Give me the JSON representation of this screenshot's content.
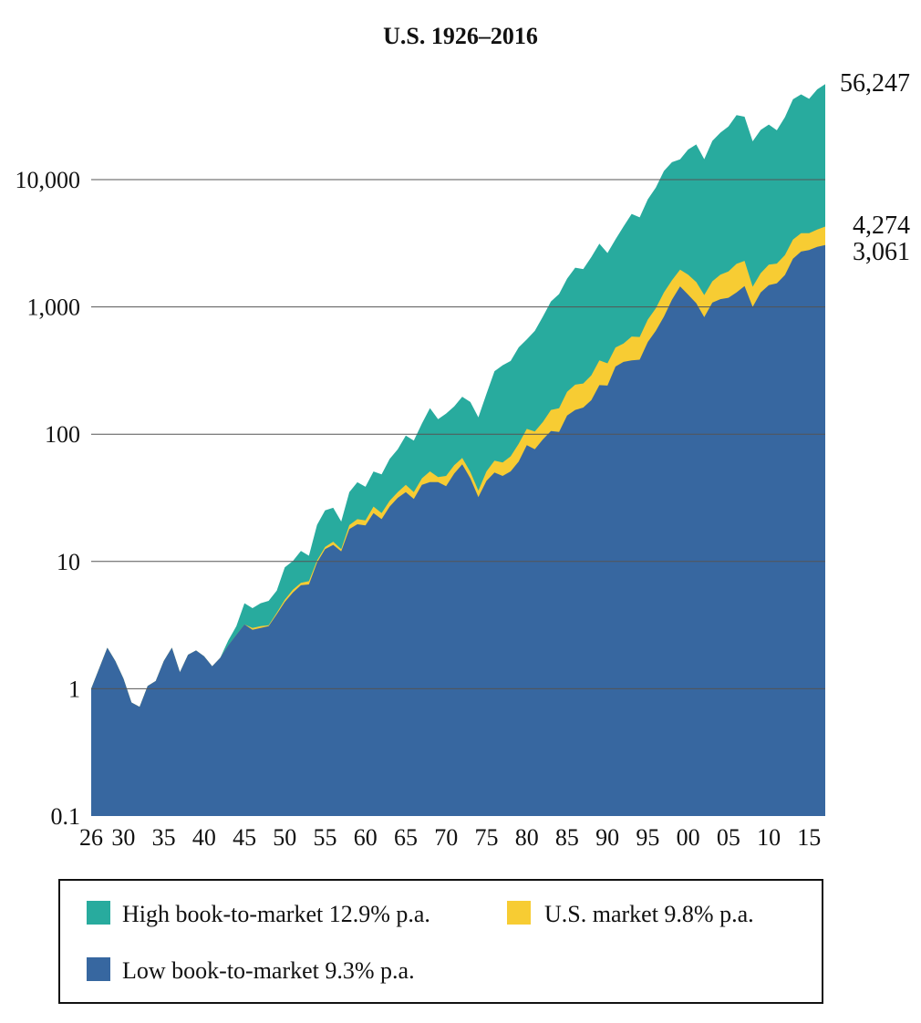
{
  "chart_data": {
    "type": "area",
    "title": "U.S. 1926–2016",
    "xlabel": "",
    "ylabel": "",
    "y_scale": "log",
    "ylim": [
      0.1,
      60000
    ],
    "y_ticks": [
      {
        "value": 0.1,
        "label": "0.1"
      },
      {
        "value": 1,
        "label": "1"
      },
      {
        "value": 10,
        "label": "10"
      },
      {
        "value": 100,
        "label": "100"
      },
      {
        "value": 1000,
        "label": "1,000"
      },
      {
        "value": 10000,
        "label": "10,000"
      }
    ],
    "gridlines": [
      1,
      10,
      100,
      1000,
      10000
    ],
    "x_ticks": [
      {
        "value": 1926,
        "label": "26"
      },
      {
        "value": 1930,
        "label": "30"
      },
      {
        "value": 1935,
        "label": "35"
      },
      {
        "value": 1940,
        "label": "40"
      },
      {
        "value": 1945,
        "label": "45"
      },
      {
        "value": 1950,
        "label": "50"
      },
      {
        "value": 1955,
        "label": "55"
      },
      {
        "value": 1960,
        "label": "60"
      },
      {
        "value": 1965,
        "label": "65"
      },
      {
        "value": 1970,
        "label": "70"
      },
      {
        "value": 1975,
        "label": "75"
      },
      {
        "value": 1980,
        "label": "80"
      },
      {
        "value": 1985,
        "label": "85"
      },
      {
        "value": 1990,
        "label": "90"
      },
      {
        "value": 1995,
        "label": "95"
      },
      {
        "value": 2000,
        "label": "00"
      },
      {
        "value": 2005,
        "label": "05"
      },
      {
        "value": 2010,
        "label": "10"
      },
      {
        "value": 2015,
        "label": "15"
      }
    ],
    "x_range": [
      1926,
      2017
    ],
    "legend_position": "bottom",
    "series": [
      {
        "name": "High book-to-market 12.9% p.a.",
        "color": "#28ab9e",
        "end_label": "56,247",
        "points": [
          [
            1926,
            1
          ],
          [
            1928,
            2.1
          ],
          [
            1929,
            1.65
          ],
          [
            1930,
            1.2
          ],
          [
            1931,
            0.78
          ],
          [
            1932,
            0.72
          ],
          [
            1933,
            1.05
          ],
          [
            1934,
            1.15
          ],
          [
            1935,
            1.65
          ],
          [
            1936,
            2.1
          ],
          [
            1937,
            1.35
          ],
          [
            1938,
            1.85
          ],
          [
            1939,
            2.0
          ],
          [
            1940,
            1.8
          ],
          [
            1941,
            1.5
          ],
          [
            1942,
            1.75
          ],
          [
            1943,
            2.4
          ],
          [
            1944,
            3.1
          ],
          [
            1945,
            4.7
          ],
          [
            1946,
            4.3
          ],
          [
            1947,
            4.7
          ],
          [
            1948,
            4.9
          ],
          [
            1949,
            5.9
          ],
          [
            1950,
            9.0
          ],
          [
            1951,
            10.1
          ],
          [
            1952,
            12.1
          ],
          [
            1953,
            11.1
          ],
          [
            1954,
            19.4
          ],
          [
            1955,
            25.2
          ],
          [
            1956,
            26.4
          ],
          [
            1957,
            20.6
          ],
          [
            1958,
            35.1
          ],
          [
            1959,
            41.9
          ],
          [
            1960,
            38.6
          ],
          [
            1961,
            50.9
          ],
          [
            1962,
            48.3
          ],
          [
            1963,
            63.9
          ],
          [
            1964,
            76.0
          ],
          [
            1965,
            97.6
          ],
          [
            1966,
            89.0
          ],
          [
            1967,
            121.2
          ],
          [
            1968,
            160.2
          ],
          [
            1969,
            131.1
          ],
          [
            1970,
            145.2
          ],
          [
            1971,
            165.5
          ],
          [
            1972,
            196.9
          ],
          [
            1973,
            179.1
          ],
          [
            1974,
            135.5
          ],
          [
            1975,
            207.6
          ],
          [
            1976,
            312.6
          ],
          [
            1977,
            347.8
          ],
          [
            1978,
            376.3
          ],
          [
            1979,
            481.0
          ],
          [
            1980,
            555.1
          ],
          [
            1981,
            648.2
          ],
          [
            1982,
            841.0
          ],
          [
            1983,
            1103.9
          ],
          [
            1984,
            1260.8
          ],
          [
            1985,
            1668.6
          ],
          [
            1986,
            2033.8
          ],
          [
            1987,
            1981.3
          ],
          [
            1988,
            2464.4
          ],
          [
            1989,
            3138.7
          ],
          [
            1990,
            2651.6
          ],
          [
            1991,
            3397.4
          ],
          [
            1992,
            4281.0
          ],
          [
            1993,
            5378.7
          ],
          [
            1994,
            5051.9
          ],
          [
            1995,
            7005.2
          ],
          [
            1996,
            8651.3
          ],
          [
            1997,
            11690
          ],
          [
            1998,
            13710
          ],
          [
            1999,
            14420
          ],
          [
            2000,
            17240
          ],
          [
            2001,
            18900
          ],
          [
            2002,
            14470
          ],
          [
            2003,
            20150
          ],
          [
            2004,
            23390
          ],
          [
            2005,
            26180
          ],
          [
            2006,
            32090
          ],
          [
            2007,
            31230
          ],
          [
            2008,
            20000
          ],
          [
            2009,
            24580
          ],
          [
            2010,
            27100
          ],
          [
            2011,
            24410
          ],
          [
            2012,
            30960
          ],
          [
            2013,
            42730
          ],
          [
            2014,
            46780
          ],
          [
            2015,
            43150
          ],
          [
            2016,
            51200
          ],
          [
            2017,
            56247
          ]
        ]
      },
      {
        "name": "U.S. market 9.8% p.a.",
        "color": "#f7cc33",
        "end_label": "4,274",
        "points": [
          [
            1926,
            1
          ],
          [
            1928,
            2.1
          ],
          [
            1929,
            1.65
          ],
          [
            1930,
            1.2
          ],
          [
            1931,
            0.78
          ],
          [
            1932,
            0.72
          ],
          [
            1933,
            1.05
          ],
          [
            1934,
            1.15
          ],
          [
            1935,
            1.65
          ],
          [
            1936,
            2.1
          ],
          [
            1937,
            1.35
          ],
          [
            1938,
            1.85
          ],
          [
            1939,
            2.0
          ],
          [
            1940,
            1.8
          ],
          [
            1941,
            1.5
          ],
          [
            1942,
            1.75
          ],
          [
            1943,
            2.2
          ],
          [
            1944,
            2.65
          ],
          [
            1945,
            3.2
          ],
          [
            1946,
            3.0
          ],
          [
            1947,
            3.1
          ],
          [
            1948,
            3.15
          ],
          [
            1949,
            3.95
          ],
          [
            1950,
            5.0
          ],
          [
            1951,
            6.0
          ],
          [
            1952,
            6.8
          ],
          [
            1953,
            7.0
          ],
          [
            1954,
            10.2
          ],
          [
            1955,
            13.0
          ],
          [
            1956,
            14.3
          ],
          [
            1957,
            12.5
          ],
          [
            1958,
            19.3
          ],
          [
            1959,
            21.5
          ],
          [
            1960,
            21.0
          ],
          [
            1961,
            27.0
          ],
          [
            1962,
            24.0
          ],
          [
            1963,
            30.0
          ],
          [
            1964,
            35.0
          ],
          [
            1965,
            40.0
          ],
          [
            1966,
            35.0
          ],
          [
            1967,
            45.0
          ],
          [
            1968,
            51.0
          ],
          [
            1969,
            46.0
          ],
          [
            1970,
            47.0
          ],
          [
            1971,
            57.0
          ],
          [
            1972,
            65.0
          ],
          [
            1973,
            50.5
          ],
          [
            1974,
            36.0
          ],
          [
            1975,
            51.0
          ],
          [
            1976,
            62.0
          ],
          [
            1977,
            60.0
          ],
          [
            1978,
            67.0
          ],
          [
            1979,
            84.0
          ],
          [
            1980,
            110.0
          ],
          [
            1981,
            105.0
          ],
          [
            1982,
            125.0
          ],
          [
            1983,
            155.0
          ],
          [
            1984,
            160.0
          ],
          [
            1985,
            215.0
          ],
          [
            1986,
            245.0
          ],
          [
            1987,
            250.0
          ],
          [
            1988,
            290.0
          ],
          [
            1989,
            380.0
          ],
          [
            1990,
            360.0
          ],
          [
            1991,
            480.0
          ],
          [
            1992,
            515.0
          ],
          [
            1993,
            585.0
          ],
          [
            1994,
            580.0
          ],
          [
            1995,
            795.0
          ],
          [
            1996,
            975.0
          ],
          [
            1997,
            1300.0
          ],
          [
            1998,
            1620.0
          ],
          [
            1999,
            1960.0
          ],
          [
            2000,
            1790.0
          ],
          [
            2001,
            1570.0
          ],
          [
            2002,
            1240.0
          ],
          [
            2003,
            1590.0
          ],
          [
            2004,
            1790.0
          ],
          [
            2005,
            1900.0
          ],
          [
            2006,
            2180.0
          ],
          [
            2007,
            2300.0
          ],
          [
            2008,
            1440.0
          ],
          [
            2009,
            1840.0
          ],
          [
            2010,
            2150.0
          ],
          [
            2011,
            2190.0
          ],
          [
            2012,
            2550.0
          ],
          [
            2013,
            3380.0
          ],
          [
            2014,
            3800.0
          ],
          [
            2015,
            3800.0
          ],
          [
            2016,
            4050.0
          ],
          [
            2017,
            4274
          ]
        ]
      },
      {
        "name": "Low book-to-market 9.3% p.a.",
        "color": "#3767a0",
        "end_label": "3,061",
        "points": [
          [
            1926,
            1
          ],
          [
            1928,
            2.1
          ],
          [
            1929,
            1.65
          ],
          [
            1930,
            1.2
          ],
          [
            1931,
            0.78
          ],
          [
            1932,
            0.72
          ],
          [
            1933,
            1.05
          ],
          [
            1934,
            1.15
          ],
          [
            1935,
            1.65
          ],
          [
            1936,
            2.1
          ],
          [
            1937,
            1.35
          ],
          [
            1938,
            1.85
          ],
          [
            1939,
            2.0
          ],
          [
            1940,
            1.8
          ],
          [
            1941,
            1.5
          ],
          [
            1942,
            1.75
          ],
          [
            1943,
            2.2
          ],
          [
            1944,
            2.65
          ],
          [
            1945,
            3.2
          ],
          [
            1946,
            2.9
          ],
          [
            1947,
            3.0
          ],
          [
            1948,
            3.1
          ],
          [
            1949,
            3.85
          ],
          [
            1950,
            4.8
          ],
          [
            1951,
            5.7
          ],
          [
            1952,
            6.5
          ],
          [
            1953,
            6.6
          ],
          [
            1954,
            9.8
          ],
          [
            1955,
            12.5
          ],
          [
            1956,
            13.5
          ],
          [
            1957,
            12.0
          ],
          [
            1958,
            18.0
          ],
          [
            1959,
            19.6
          ],
          [
            1960,
            19.2
          ],
          [
            1961,
            24.0
          ],
          [
            1962,
            21.5
          ],
          [
            1963,
            27.0
          ],
          [
            1964,
            31.6
          ],
          [
            1965,
            35.0
          ],
          [
            1966,
            31.0
          ],
          [
            1967,
            40.0
          ],
          [
            1968,
            42.0
          ],
          [
            1969,
            42.0
          ],
          [
            1970,
            39.0
          ],
          [
            1971,
            49.0
          ],
          [
            1972,
            58.0
          ],
          [
            1973,
            45.0
          ],
          [
            1974,
            32.0
          ],
          [
            1975,
            43.0
          ],
          [
            1976,
            50.0
          ],
          [
            1977,
            47.0
          ],
          [
            1978,
            51.0
          ],
          [
            1979,
            61.0
          ],
          [
            1980,
            82.0
          ],
          [
            1981,
            76.0
          ],
          [
            1982,
            91.0
          ],
          [
            1983,
            106.0
          ],
          [
            1984,
            104.0
          ],
          [
            1985,
            140.0
          ],
          [
            1986,
            155.0
          ],
          [
            1987,
            162.0
          ],
          [
            1988,
            185.0
          ],
          [
            1989,
            243.0
          ],
          [
            1990,
            241.0
          ],
          [
            1991,
            340.0
          ],
          [
            1992,
            370.0
          ],
          [
            1993,
            380.0
          ],
          [
            1994,
            385.0
          ],
          [
            1995,
            530.0
          ],
          [
            1996,
            650.0
          ],
          [
            1997,
            840.0
          ],
          [
            1998,
            1140.0
          ],
          [
            1999,
            1450.0
          ],
          [
            2000,
            1250.0
          ],
          [
            2001,
            1070.0
          ],
          [
            2002,
            830.0
          ],
          [
            2003,
            1080.0
          ],
          [
            2004,
            1150.0
          ],
          [
            2005,
            1180.0
          ],
          [
            2006,
            1300.0
          ],
          [
            2007,
            1460.0
          ],
          [
            2008,
            1000.0
          ],
          [
            2009,
            1300.0
          ],
          [
            2010,
            1480.0
          ],
          [
            2011,
            1530.0
          ],
          [
            2012,
            1780.0
          ],
          [
            2013,
            2390.0
          ],
          [
            2014,
            2720.0
          ],
          [
            2015,
            2800.0
          ],
          [
            2016,
            2960.0
          ],
          [
            2017,
            3061
          ]
        ]
      }
    ],
    "legend": [
      {
        "label": "High book-to-market 12.9% p.a.",
        "color": "#28ab9e"
      },
      {
        "label": "U.S. market 9.8% p.a.",
        "color": "#f7cc33"
      },
      {
        "label": "Low book-to-market 9.3% p.a.",
        "color": "#3767a0"
      }
    ]
  }
}
